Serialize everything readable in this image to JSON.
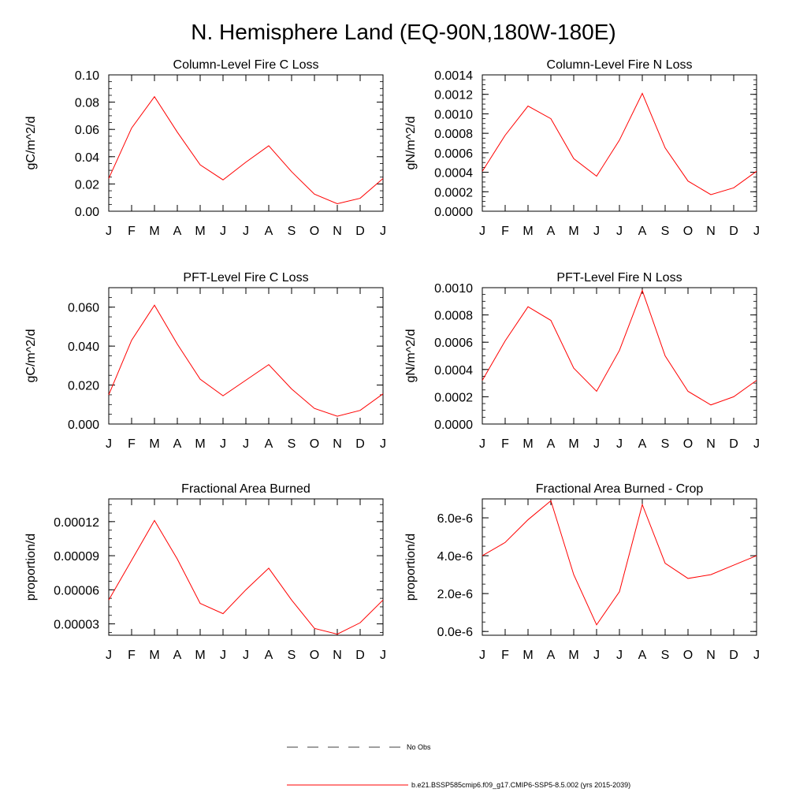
{
  "figure": {
    "title": "N. Hemisphere Land (EQ-90N,180W-180E)"
  },
  "legend": {
    "obs_label": "No Obs",
    "model_label": "b.e21.BSSP585cmip6.f09_g17.CMIP6-SSP5-8.5.002 (yrs 2015-2039)",
    "model_color": "#ff0000",
    "obs_color": "#000000"
  },
  "chart_data": [
    {
      "type": "line",
      "title": "Column-Level Fire C Loss",
      "ylabel": "gC/m^2/d",
      "categories": [
        "J",
        "F",
        "M",
        "A",
        "M",
        "J",
        "J",
        "A",
        "S",
        "O",
        "N",
        "D",
        "J"
      ],
      "ylim": [
        0,
        0.1
      ],
      "yticks": [
        0.0,
        0.02,
        0.04,
        0.06,
        0.08,
        0.1
      ],
      "yticklabels": [
        "0.00",
        "0.02",
        "0.04",
        "0.06",
        "0.08",
        "0.10"
      ],
      "series": [
        {
          "values": [
            0.024,
            0.061,
            0.084,
            0.058,
            0.034,
            0.023,
            0.036,
            0.048,
            0.029,
            0.0125,
            0.0055,
            0.0095,
            0.024
          ],
          "color": "#ff0000"
        }
      ]
    },
    {
      "type": "line",
      "title": "Column-Level Fire N Loss",
      "ylabel": "gN/m^2/d",
      "categories": [
        "J",
        "F",
        "M",
        "A",
        "M",
        "J",
        "J",
        "A",
        "S",
        "O",
        "N",
        "D",
        "J"
      ],
      "ylim": [
        0,
        0.0014
      ],
      "yticks": [
        0,
        0.0002,
        0.0004,
        0.0006,
        0.0008,
        0.001,
        0.0012,
        0.0014
      ],
      "yticklabels": [
        "0.0000",
        "0.0002",
        "0.0004",
        "0.0006",
        "0.0008",
        "0.0010",
        "0.0012",
        "0.0014"
      ],
      "series": [
        {
          "values": [
            0.00041,
            0.00078,
            0.00108,
            0.00095,
            0.00054,
            0.00036,
            0.00073,
            0.00121,
            0.00065,
            0.00031,
            0.00017,
            0.00024,
            0.00041
          ],
          "color": "#ff0000"
        }
      ]
    },
    {
      "type": "line",
      "title": "PFT-Level Fire C Loss",
      "ylabel": "gC/m^2/d",
      "categories": [
        "J",
        "F",
        "M",
        "A",
        "M",
        "J",
        "J",
        "A",
        "S",
        "O",
        "N",
        "D",
        "J"
      ],
      "ylim": [
        0,
        0.07
      ],
      "yticks": [
        0.0,
        0.02,
        0.04,
        0.06
      ],
      "yticklabels": [
        "0.000",
        "0.020",
        "0.040",
        "0.060"
      ],
      "series": [
        {
          "values": [
            0.015,
            0.043,
            0.061,
            0.041,
            0.023,
            0.0145,
            0.0225,
            0.0305,
            0.018,
            0.008,
            0.004,
            0.007,
            0.0155
          ],
          "color": "#ff0000"
        }
      ]
    },
    {
      "type": "line",
      "title": "PFT-Level Fire N Loss",
      "ylabel": "gN/m^2/d",
      "categories": [
        "J",
        "F",
        "M",
        "A",
        "M",
        "J",
        "J",
        "A",
        "S",
        "O",
        "N",
        "D",
        "J"
      ],
      "ylim": [
        0,
        0.001
      ],
      "yticks": [
        0,
        0.0002,
        0.0004,
        0.0006,
        0.0008,
        0.001
      ],
      "yticklabels": [
        "0.0000",
        "0.0002",
        "0.0004",
        "0.0006",
        "0.0008",
        "0.0010"
      ],
      "series": [
        {
          "values": [
            0.00032,
            0.00061,
            0.00086,
            0.00076,
            0.00041,
            0.00024,
            0.00054,
            0.00098,
            0.0005,
            0.00024,
            0.00014,
            0.0002,
            0.00032
          ],
          "color": "#ff0000"
        }
      ]
    },
    {
      "type": "line",
      "title": "Fractional Area Burned",
      "ylabel": "proportion/d",
      "categories": [
        "J",
        "F",
        "M",
        "A",
        "M",
        "J",
        "J",
        "A",
        "S",
        "O",
        "N",
        "D",
        "J"
      ],
      "ylim": [
        2e-05,
        0.00014
      ],
      "yticks": [
        3e-05,
        6e-05,
        9e-05,
        0.00012
      ],
      "yticklabels": [
        "0.00003",
        "0.00006",
        "0.00009",
        "0.00012"
      ],
      "series": [
        {
          "values": [
            5.1e-05,
            8.6e-05,
            0.000121,
            8.7e-05,
            4.8e-05,
            3.9e-05,
            6e-05,
            7.9e-05,
            5.1e-05,
            2.6e-05,
            2.1e-05,
            3.1e-05,
            5.1e-05
          ],
          "color": "#ff0000"
        }
      ]
    },
    {
      "type": "line",
      "title": "Fractional Area Burned - Crop",
      "ylabel": "proportion/d",
      "categories": [
        "J",
        "F",
        "M",
        "A",
        "M",
        "J",
        "J",
        "A",
        "S",
        "O",
        "N",
        "D",
        "J"
      ],
      "ylim": [
        -2e-07,
        7e-06
      ],
      "yticks": [
        0,
        2e-06,
        4e-06,
        6e-06
      ],
      "yticklabels": [
        "0.0e-6",
        "2.0e-6",
        "4.0e-6",
        "6.0e-6"
      ],
      "series": [
        {
          "values": [
            4e-06,
            4.7e-06,
            5.9e-06,
            6.9e-06,
            3e-06,
            3.5e-07,
            2.1e-06,
            6.7e-06,
            3.6e-06,
            2.8e-06,
            3e-06,
            3.5e-06,
            4e-06
          ],
          "color": "#ff0000"
        }
      ]
    }
  ]
}
